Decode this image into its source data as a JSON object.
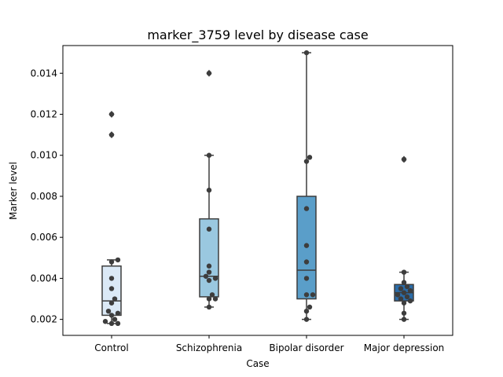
{
  "chart_data": {
    "type": "box",
    "title": "marker_3759 level by disease case",
    "xlabel": "Case",
    "ylabel": "Marker level",
    "ylim": [
      0.00122,
      0.01535
    ],
    "yticks": [
      0.002,
      0.004,
      0.006,
      0.008,
      0.01,
      0.012,
      0.014
    ],
    "ytick_labels": [
      "0.002",
      "0.004",
      "0.006",
      "0.008",
      "0.010",
      "0.012",
      "0.014"
    ],
    "categories": [
      "Control",
      "Schizophrenia",
      "Bipolar disorder",
      "Major depression"
    ],
    "grid": false,
    "series": [
      {
        "category": "Control",
        "color": "#dbe9f6",
        "box": {
          "whisker_low": 0.0018,
          "q1": 0.0022,
          "median": 0.0029,
          "q3": 0.0046,
          "whisker_high": 0.0049
        },
        "outliers": [
          0.011,
          0.012
        ],
        "points": [
          0.0049,
          0.0048,
          0.004,
          0.0035,
          0.003,
          0.0028,
          0.0023,
          0.0024,
          0.0022,
          0.002,
          0.0019,
          0.0018,
          0.0018,
          0.011,
          0.012
        ]
      },
      {
        "category": "Schizophrenia",
        "color": "#9ac8e0",
        "box": {
          "whisker_low": 0.0026,
          "q1": 0.0031,
          "median": 0.0041,
          "q3": 0.0069,
          "whisker_high": 0.01
        },
        "outliers": [
          0.014
        ],
        "points": [
          0.01,
          0.0083,
          0.0064,
          0.0046,
          0.0043,
          0.0041,
          0.004,
          0.0039,
          0.0032,
          0.003,
          0.003,
          0.0026,
          0.014
        ]
      },
      {
        "category": "Bipolar disorder",
        "color": "#5a9ec9",
        "box": {
          "whisker_low": 0.002,
          "q1": 0.003,
          "median": 0.0044,
          "q3": 0.008,
          "whisker_high": 0.015
        },
        "outliers": [],
        "points": [
          0.015,
          0.0099,
          0.0097,
          0.0074,
          0.0056,
          0.0048,
          0.004,
          0.0032,
          0.0032,
          0.0026,
          0.0024,
          0.002
        ]
      },
      {
        "category": "Major depression",
        "color": "#2b6ca8",
        "box": {
          "whisker_low": 0.002,
          "q1": 0.0029,
          "median": 0.0033,
          "q3": 0.0037,
          "whisker_high": 0.0043
        },
        "outliers": [
          0.0098
        ],
        "points": [
          0.0043,
          0.0038,
          0.0036,
          0.0035,
          0.0034,
          0.0033,
          0.0032,
          0.0031,
          0.003,
          0.0029,
          0.0028,
          0.0023,
          0.002,
          0.0098
        ]
      }
    ]
  }
}
